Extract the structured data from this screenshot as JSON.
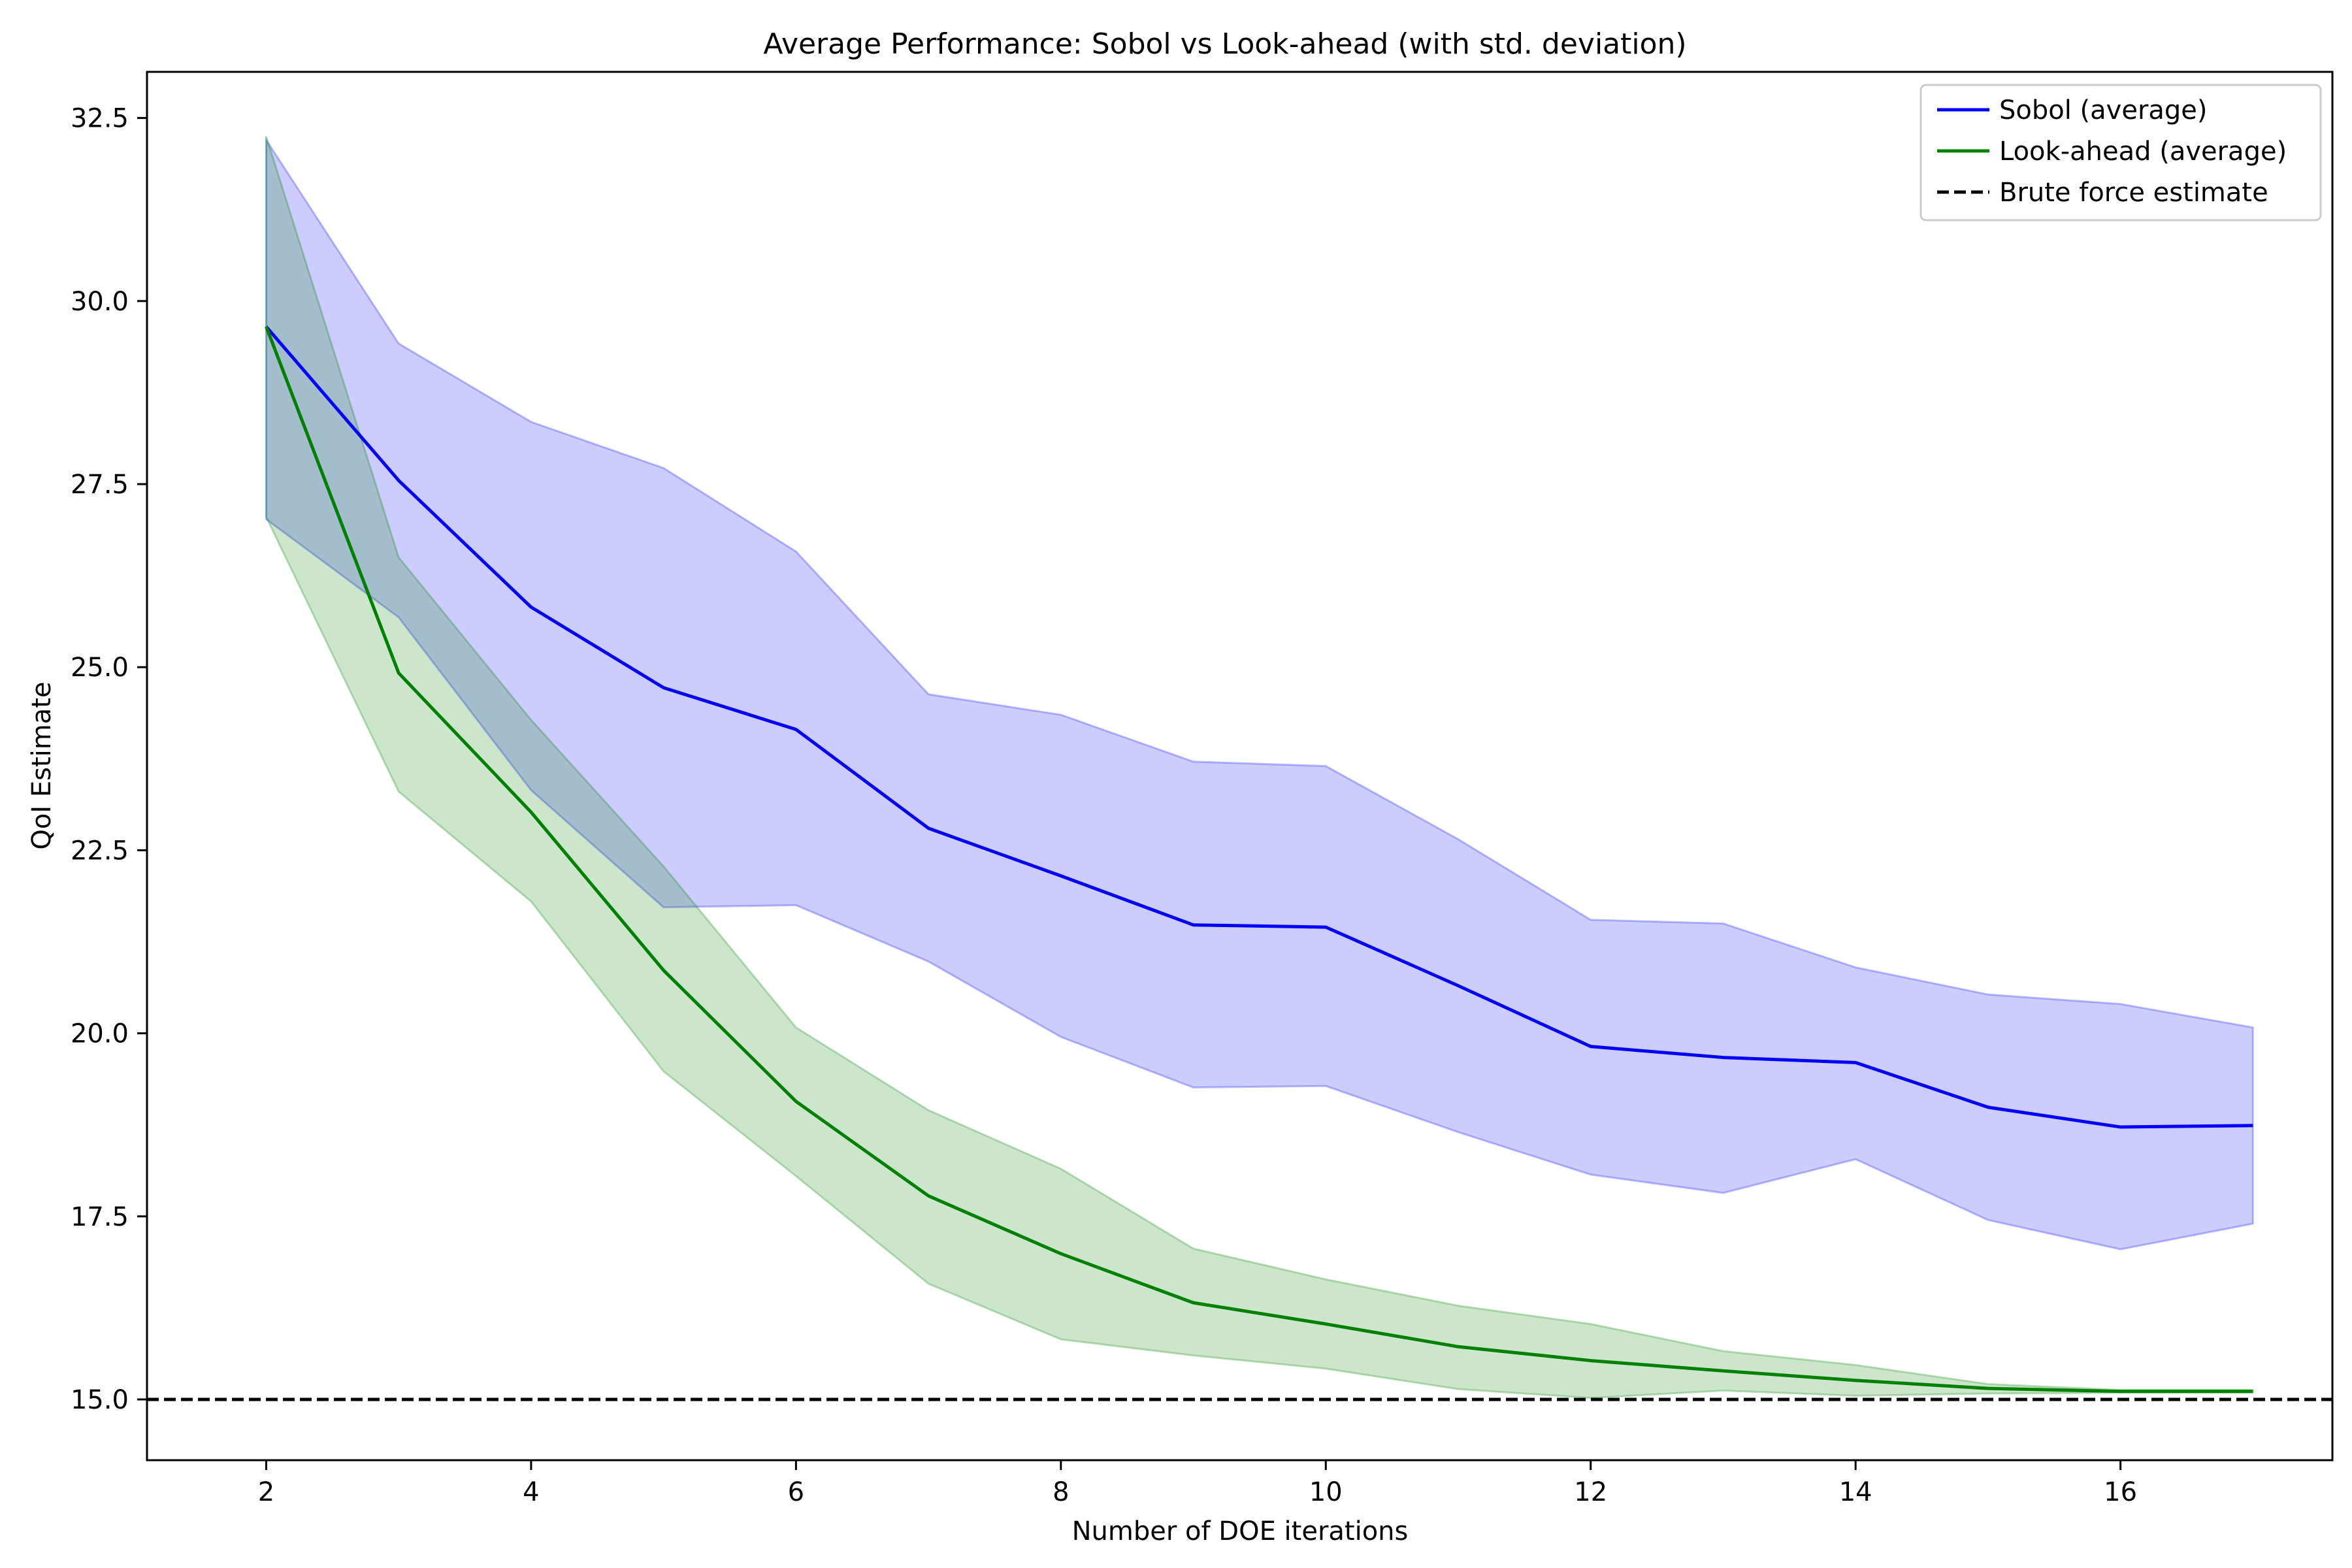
{
  "chart_data": {
    "type": "line",
    "title": "Average Performance: Sobol vs Look-ahead (with std. deviation)",
    "xlabel": "Number of DOE iterations",
    "ylabel": "QoI Estimate",
    "xlim": [
      1.1,
      17.6
    ],
    "ylim": [
      14.17,
      33.13
    ],
    "x_ticks": [
      2,
      4,
      6,
      8,
      10,
      12,
      14,
      16
    ],
    "y_ticks": [
      15.0,
      17.5,
      20.0,
      22.5,
      25.0,
      27.5,
      30.0,
      32.5
    ],
    "x_tick_labels": [
      "2",
      "4",
      "6",
      "8",
      "10",
      "12",
      "14",
      "16"
    ],
    "y_tick_labels": [
      "15.0",
      "17.5",
      "20.0",
      "22.5",
      "25.0",
      "27.5",
      "30.0",
      "32.5"
    ],
    "grid": false,
    "legend_position": "upper right",
    "x": [
      2,
      3,
      4,
      5,
      6,
      7,
      8,
      9,
      10,
      11,
      12,
      13,
      14,
      15,
      16,
      17
    ],
    "series": [
      {
        "name": "Sobol (average)",
        "color": "#0000ff",
        "values": [
          29.65,
          27.55,
          25.82,
          24.72,
          24.15,
          22.8,
          22.15,
          21.48,
          21.45,
          20.65,
          19.82,
          19.67,
          19.6,
          18.99,
          18.72,
          18.74
        ],
        "upper": [
          32.2,
          29.42,
          28.35,
          27.72,
          26.58,
          24.63,
          24.35,
          23.71,
          23.65,
          22.65,
          21.55,
          21.5,
          20.9,
          20.53,
          20.4,
          20.08
        ],
        "lower": [
          27.02,
          25.68,
          23.32,
          21.72,
          21.75,
          20.98,
          19.95,
          19.26,
          19.28,
          18.65,
          18.07,
          17.82,
          18.28,
          17.45,
          17.05,
          17.4
        ],
        "band_color": "#0000ff",
        "band_opacity": 0.2
      },
      {
        "name": "Look-ahead (average)",
        "color": "#008000",
        "values": [
          29.65,
          24.92,
          23.02,
          20.86,
          19.07,
          17.78,
          16.99,
          16.32,
          16.03,
          15.72,
          15.53,
          15.39,
          15.26,
          15.15,
          15.11,
          15.11
        ],
        "upper": [
          32.25,
          26.5,
          24.28,
          22.28,
          20.08,
          18.95,
          18.15,
          17.06,
          16.64,
          16.28,
          16.03,
          15.66,
          15.47,
          15.21,
          15.13,
          15.13
        ],
        "lower": [
          27.05,
          23.3,
          21.8,
          19.48,
          18.05,
          16.58,
          15.82,
          15.6,
          15.42,
          15.14,
          15.02,
          15.12,
          15.05,
          15.08,
          15.09,
          15.09
        ],
        "band_color": "#008000",
        "band_opacity": 0.2
      },
      {
        "name": "Brute force estimate",
        "color": "#000000",
        "style": "dashed",
        "y": 15.0
      }
    ]
  }
}
